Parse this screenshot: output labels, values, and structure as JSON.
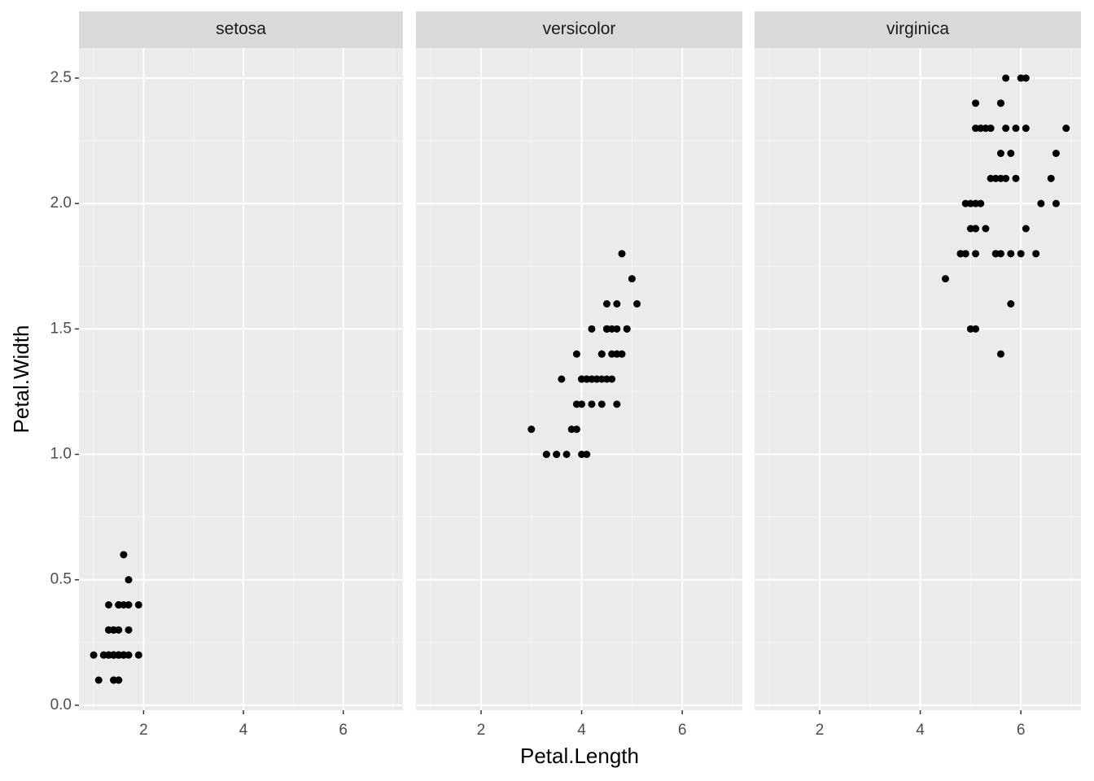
{
  "chart_data": {
    "type": "scatter",
    "x_label": "Petal.Length",
    "y_label": "Petal.Width",
    "color": "#000000",
    "xlim": [
      0.705,
      7.195
    ],
    "ylim": [
      -0.02,
      2.62
    ],
    "xticks": [
      2,
      4,
      6
    ],
    "xminor": [
      1,
      3,
      5,
      7
    ],
    "yticks": [
      {
        "value": 0,
        "label": "0.0"
      },
      0.5,
      {
        "value": 1,
        "label": "1.0"
      },
      1.5,
      {
        "value": 2,
        "label": "2.0"
      },
      2.5
    ],
    "yminor": [
      0.25,
      0.75,
      1.25,
      1.75,
      2.25
    ],
    "grid": true,
    "facets": [
      {
        "title": "setosa",
        "x": [
          1.4,
          1.4,
          1.3,
          1.5,
          1.4,
          1.7,
          1.4,
          1.5,
          1.4,
          1.5,
          1.5,
          1.6,
          1.4,
          1.1,
          1.2,
          1.5,
          1.3,
          1.4,
          1.7,
          1.5,
          1.7,
          1.5,
          1.0,
          1.7,
          1.9,
          1.6,
          1.6,
          1.5,
          1.4,
          1.6,
          1.6,
          1.5,
          1.5,
          1.4,
          1.5,
          1.2,
          1.3,
          1.4,
          1.3,
          1.5,
          1.3,
          1.3,
          1.3,
          1.6,
          1.9,
          1.4,
          1.6,
          1.4,
          1.5,
          1.4
        ],
        "y": [
          0.2,
          0.2,
          0.2,
          0.2,
          0.2,
          0.4,
          0.3,
          0.2,
          0.2,
          0.1,
          0.2,
          0.2,
          0.1,
          0.1,
          0.2,
          0.4,
          0.4,
          0.3,
          0.3,
          0.3,
          0.2,
          0.4,
          0.2,
          0.5,
          0.2,
          0.2,
          0.4,
          0.2,
          0.2,
          0.2,
          0.2,
          0.4,
          0.1,
          0.2,
          0.2,
          0.2,
          0.2,
          0.1,
          0.2,
          0.2,
          0.3,
          0.3,
          0.2,
          0.6,
          0.4,
          0.3,
          0.2,
          0.2,
          0.2,
          0.2
        ]
      },
      {
        "title": "versicolor",
        "x": [
          4.7,
          4.5,
          4.9,
          4.0,
          4.6,
          4.5,
          4.7,
          3.3,
          4.6,
          3.9,
          3.5,
          4.2,
          4.0,
          4.7,
          3.6,
          4.4,
          4.5,
          4.1,
          4.5,
          3.9,
          4.8,
          4.0,
          4.9,
          4.7,
          4.3,
          4.4,
          4.8,
          5.0,
          4.5,
          3.5,
          3.8,
          3.7,
          3.9,
          5.1,
          4.5,
          4.5,
          4.7,
          4.4,
          4.1,
          4.0,
          4.4,
          4.6,
          4.0,
          3.3,
          4.2,
          4.2,
          4.2,
          4.3,
          3.0,
          4.1
        ],
        "y": [
          1.4,
          1.5,
          1.5,
          1.3,
          1.5,
          1.3,
          1.6,
          1.0,
          1.3,
          1.4,
          1.0,
          1.5,
          1.0,
          1.4,
          1.3,
          1.4,
          1.5,
          1.0,
          1.5,
          1.1,
          1.8,
          1.3,
          1.5,
          1.2,
          1.3,
          1.4,
          1.4,
          1.7,
          1.5,
          1.0,
          1.1,
          1.0,
          1.2,
          1.6,
          1.5,
          1.6,
          1.5,
          1.3,
          1.3,
          1.3,
          1.2,
          1.4,
          1.2,
          1.0,
          1.3,
          1.2,
          1.3,
          1.3,
          1.1,
          1.3
        ]
      },
      {
        "title": "virginica",
        "x": [
          6.0,
          5.1,
          5.9,
          5.6,
          5.8,
          6.6,
          4.5,
          6.3,
          5.8,
          6.1,
          5.1,
          5.3,
          5.5,
          5.0,
          5.1,
          5.3,
          5.5,
          6.7,
          6.9,
          5.0,
          5.7,
          4.9,
          6.7,
          4.9,
          5.7,
          6.0,
          4.8,
          4.9,
          5.6,
          5.8,
          6.1,
          6.4,
          5.6,
          5.1,
          5.6,
          6.1,
          5.6,
          5.5,
          4.8,
          5.4,
          5.6,
          5.1,
          5.1,
          5.9,
          5.7,
          5.2,
          5.0,
          5.2,
          5.4,
          5.1
        ],
        "y": [
          2.5,
          1.9,
          2.1,
          1.8,
          2.2,
          2.1,
          1.7,
          1.8,
          1.8,
          2.5,
          2.0,
          1.9,
          2.1,
          2.0,
          2.4,
          2.3,
          1.8,
          2.2,
          2.3,
          1.5,
          2.3,
          2.0,
          2.0,
          1.8,
          2.1,
          1.8,
          1.8,
          1.8,
          2.1,
          1.6,
          1.9,
          2.0,
          2.2,
          1.5,
          1.4,
          2.3,
          2.4,
          1.8,
          1.8,
          2.1,
          2.4,
          2.3,
          1.9,
          2.3,
          2.5,
          2.3,
          1.9,
          2.0,
          2.3,
          1.8
        ]
      }
    ]
  }
}
